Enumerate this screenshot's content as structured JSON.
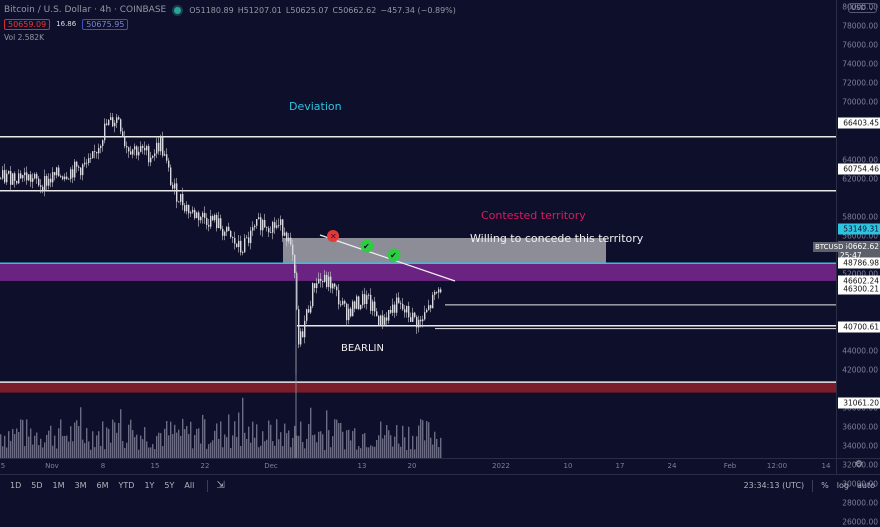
{
  "header": {
    "symbol_title": "Bitcoin / U.S. Dollar · 4h · COINBASE",
    "ohlc": {
      "open": "O51180.89",
      "high": "H51207.01",
      "low": "L50625.07",
      "close": "C50662.62",
      "change": "−457.34 (−0.89%)"
    },
    "bid": "50659.09",
    "spread": "16.86",
    "ask": "50675.95",
    "volume": "Vol  2.582K",
    "currency": "USD"
  },
  "colors": {
    "background": "#0e0f2b",
    "bid": "#d32f2f",
    "ask": "#3f51b5",
    "purple_band": "#6a2380",
    "red_band": "#7a1c2a",
    "contested": "#9a9ba3",
    "cyan": "#2ec4e0"
  },
  "annotations": {
    "deviation": "Deviation",
    "contested": "Contested territory",
    "concede": "Willing to concede this territory",
    "bearlin": "BEARLIN"
  },
  "price_axis": {
    "ticks": [
      "80000.00",
      "78000.00",
      "76000.00",
      "74000.00",
      "72000.00",
      "70000.00",
      "68000.00",
      "64000.00",
      "62000.00",
      "58000.00",
      "56000.00",
      "54000.00",
      "52000.00",
      "44000.00",
      "42000.00",
      "38000.00",
      "36000.00",
      "34000.00",
      "32000.00",
      "30000.00",
      "28000.00",
      "26000.00"
    ],
    "level_labels": {
      "l66403": "66403.45",
      "l60754": "60754.46",
      "l53149": "53149.31",
      "current": "50662.62",
      "countdown": "25:47",
      "symbol_tag": "BTCUSD",
      "l48786": "48786.98",
      "l46602": "46602.24",
      "l46300": "46300.21",
      "l40700": "40700.61",
      "l31061": "31061.20"
    }
  },
  "time_axis": {
    "ticks": [
      "5",
      "Nov",
      "8",
      "15",
      "22",
      "Dec",
      "13",
      "20",
      "2022",
      "10",
      "17",
      "24",
      "Feb",
      "12:00",
      "14"
    ]
  },
  "bottom_bar": {
    "ranges": [
      "1D",
      "5D",
      "1M",
      "3M",
      "6M",
      "YTD",
      "1Y",
      "5Y",
      "All"
    ],
    "clock": "23:34:13 (UTC)",
    "percent": "%",
    "log": "log",
    "auto": "auto"
  },
  "chart_data": {
    "type": "candlestick",
    "title": "Bitcoin / U.S. Dollar · 4h · COINBASE",
    "xlabel": "",
    "ylabel": "USD",
    "ylim": [
      25000,
      80000
    ],
    "x_ticks": [
      "5",
      "Nov",
      "8",
      "15",
      "22",
      "Dec",
      "13",
      "20",
      "2022",
      "10",
      "17",
      "24",
      "Feb",
      "12:00",
      "14"
    ],
    "last": {
      "open": 51180.89,
      "high": 51207.01,
      "low": 50625.07,
      "close": 50662.62,
      "change": -457.34,
      "change_pct": -0.89
    },
    "horizontal_levels": [
      66403.45,
      60754.46,
      53149.31,
      48786.98,
      46602.24,
      46300.21,
      40700.61,
      31061.2
    ],
    "zones": [
      {
        "label": "Contested territory",
        "from": 53149.31,
        "to": 55800
      },
      {
        "label": "Willing to concede this territory",
        "from": 51200,
        "to": 53149.31
      },
      {
        "label": "BEARLIN",
        "from": 39700,
        "to": 40700.61
      },
      {
        "label": "",
        "from": 30000,
        "to": 31061.2
      }
    ],
    "price_path_approx": [
      {
        "t": "late Oct",
        "price": 62000
      },
      {
        "t": "Nov 10",
        "price": 68800
      },
      {
        "t": "Nov 15",
        "price": 65000
      },
      {
        "t": "Nov 22",
        "price": 56500
      },
      {
        "t": "Dec 1",
        "price": 57000
      },
      {
        "t": "Dec 4",
        "price": 42000
      },
      {
        "t": "Dec 7",
        "price": 51000
      },
      {
        "t": "Dec 14",
        "price": 46500
      },
      {
        "t": "Dec 20",
        "price": 46500
      },
      {
        "t": "Dec 24",
        "price": 50662.62
      }
    ],
    "legend": [
      "Vol 2.582K"
    ]
  }
}
